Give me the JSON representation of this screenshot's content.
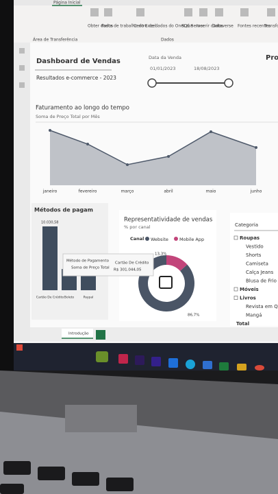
{
  "ribbon": {
    "tab": "Página Inicial",
    "items": [
      "Obter dados",
      "Pasta de trabalho do Excel",
      "Centro de dados do OneLake",
      "SQL Server",
      "Inserir dados",
      "Dataverse",
      "Fontes recentes",
      "Transformar dados"
    ],
    "groups": [
      "Área de Transferência",
      "Dados"
    ]
  },
  "header": {
    "title": "Dashboard de Vendas",
    "subtitle": "Resultados e-commerce - 2023"
  },
  "slicer": {
    "title": "Data da Venda",
    "start": "01/01/2023",
    "end": "18/08/2023",
    "side_title": "Pro"
  },
  "line_chart": {
    "type": "area",
    "title": "Faturamento ao longo do tempo",
    "subtitle": "Soma de Preço Total por Mês",
    "categories": [
      "janeiro",
      "fevereiro",
      "março",
      "abril",
      "maio",
      "junho"
    ],
    "values": [
      80,
      60,
      30,
      42,
      78,
      55
    ],
    "color": "#4f5a6b"
  },
  "bar_chart": {
    "type": "bar",
    "title": "Métodos de pagam",
    "top_label": "10.030,58",
    "categories": [
      "Cartão De Crédito",
      "Boleto",
      "Paypal"
    ],
    "values": [
      301044.05,
      100000,
      95000
    ],
    "color": "#3f4d5e"
  },
  "donut_chart": {
    "type": "pie",
    "title": "Representatividade de vendas",
    "subtitle": "% por canal",
    "legend_title": "Canal",
    "series": [
      {
        "name": "Website",
        "color": "#4a5566",
        "value": 86.7,
        "value_label": "86,7%"
      },
      {
        "name": "Mobile App",
        "color": "#c2457a",
        "value": 13.3,
        "value_label": "13,3%"
      }
    ]
  },
  "tooltip": {
    "rows": [
      [
        "Método de Pagamento",
        "Cartão De Crédito"
      ],
      [
        "Soma de Preço Total",
        "R$ 301.044,05"
      ]
    ]
  },
  "tree": {
    "header": "Categoria",
    "groups": [
      {
        "name": "Roupas",
        "items": [
          "Vestido",
          "Shorts",
          "Camiseta",
          "Calça Jeans",
          "Blusa de Frio"
        ]
      },
      {
        "name": "Móveis",
        "items": []
      },
      {
        "name": "Livros",
        "items": [
          "Revista em Qua",
          "Mangá"
        ]
      }
    ],
    "total": "Total"
  },
  "pages": [
    "Introdução"
  ]
}
